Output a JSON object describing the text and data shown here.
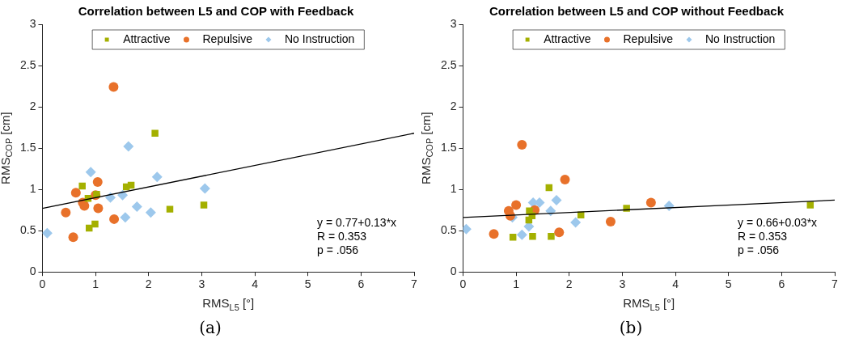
{
  "chart_data": [
    {
      "type": "scatter",
      "title": "Correlation between L5 and COP with Feedback",
      "subtitle": "(a)",
      "xlabel": "RMS$_{L5}$ [°]",
      "ylabel": "RMS$_{COP}$ [cm]",
      "xlim": [
        0,
        7
      ],
      "xticks": [
        0,
        1,
        2,
        3,
        4,
        5,
        6,
        7
      ],
      "ylim": [
        0,
        3
      ],
      "yticks": [
        0,
        0.5,
        1,
        1.5,
        2,
        2.5,
        3
      ],
      "grid": false,
      "legend": "top",
      "annotations": [
        "y = 0.77+0.13*x",
        "R = 0.353",
        "p = .056"
      ],
      "series": [
        {
          "name": "Attractive",
          "color": "#a4b000",
          "marker": "square",
          "x": [
            0.75,
            0.86,
            1.02,
            0.88,
            0.99,
            1.58,
            1.67,
            2.12,
            2.4,
            3.04
          ],
          "values": [
            1.04,
            0.89,
            0.94,
            0.53,
            0.58,
            1.03,
            1.05,
            1.68,
            0.76,
            0.81
          ]
        },
        {
          "name": "Repulsive",
          "color": "#e8712a",
          "marker": "circle",
          "x": [
            1.34,
            1.04,
            0.63,
            1.0,
            0.76,
            0.79,
            1.05,
            0.44,
            0.58,
            1.35
          ],
          "values": [
            2.24,
            1.09,
            0.96,
            0.93,
            0.84,
            0.8,
            0.77,
            0.72,
            0.42,
            0.64
          ]
        },
        {
          "name": "No Instruction",
          "color": "#9dc8ec",
          "marker": "diamond",
          "x": [
            0.09,
            0.91,
            1.62,
            2.16,
            3.06,
            1.28,
            1.51,
            1.56,
            1.78,
            2.04
          ],
          "values": [
            0.47,
            1.21,
            1.52,
            1.15,
            1.01,
            0.9,
            0.93,
            0.66,
            0.79,
            0.72
          ]
        },
        {
          "type": "line",
          "color": "#000000",
          "marker": "none",
          "x": [
            0,
            7
          ],
          "values": [
            0.77,
            1.68
          ]
        }
      ]
    },
    {
      "type": "scatter",
      "title": "Correlation between L5 and COP without Feedback",
      "subtitle": "(b)",
      "xlabel": "RMS$_{L5}$ [°]",
      "ylabel": "RMS$_{COP}$ [cm]",
      "xlim": [
        0,
        7
      ],
      "xticks": [
        0,
        1,
        2,
        3,
        4,
        5,
        6,
        7
      ],
      "ylim": [
        0,
        3
      ],
      "yticks": [
        0,
        0.5,
        1,
        1.5,
        2,
        2.5,
        3
      ],
      "grid": false,
      "legend": "top",
      "annotations": [
        "y = 0.66+0.03*x",
        "R = 0.353",
        "p = .056"
      ],
      "series": [
        {
          "name": "Attractive",
          "color": "#a4b000",
          "marker": "square",
          "x": [
            0.94,
            1.31,
            1.66,
            1.25,
            1.24,
            1.3,
            1.62,
            2.22,
            3.08,
            6.54
          ],
          "values": [
            0.42,
            0.43,
            0.43,
            0.74,
            0.63,
            0.68,
            1.02,
            0.69,
            0.77,
            0.81
          ]
        },
        {
          "name": "Repulsive",
          "color": "#e8712a",
          "marker": "circle",
          "x": [
            1.11,
            1.92,
            1.0,
            0.86,
            0.89,
            1.35,
            0.58,
            1.81,
            2.78,
            3.54
          ],
          "values": [
            1.54,
            1.12,
            0.81,
            0.74,
            0.68,
            0.75,
            0.46,
            0.48,
            0.61,
            0.84
          ]
        },
        {
          "name": "No Instruction",
          "color": "#9dc8ec",
          "marker": "diamond",
          "x": [
            0.06,
            0.93,
            1.11,
            1.24,
            1.32,
            1.44,
            1.65,
            1.76,
            2.12,
            3.88
          ],
          "values": [
            0.52,
            0.66,
            0.45,
            0.55,
            0.84,
            0.84,
            0.74,
            0.87,
            0.6,
            0.8
          ]
        },
        {
          "type": "line",
          "color": "#000000",
          "marker": "none",
          "x": [
            0,
            7
          ],
          "values": [
            0.66,
            0.87
          ]
        }
      ]
    }
  ]
}
